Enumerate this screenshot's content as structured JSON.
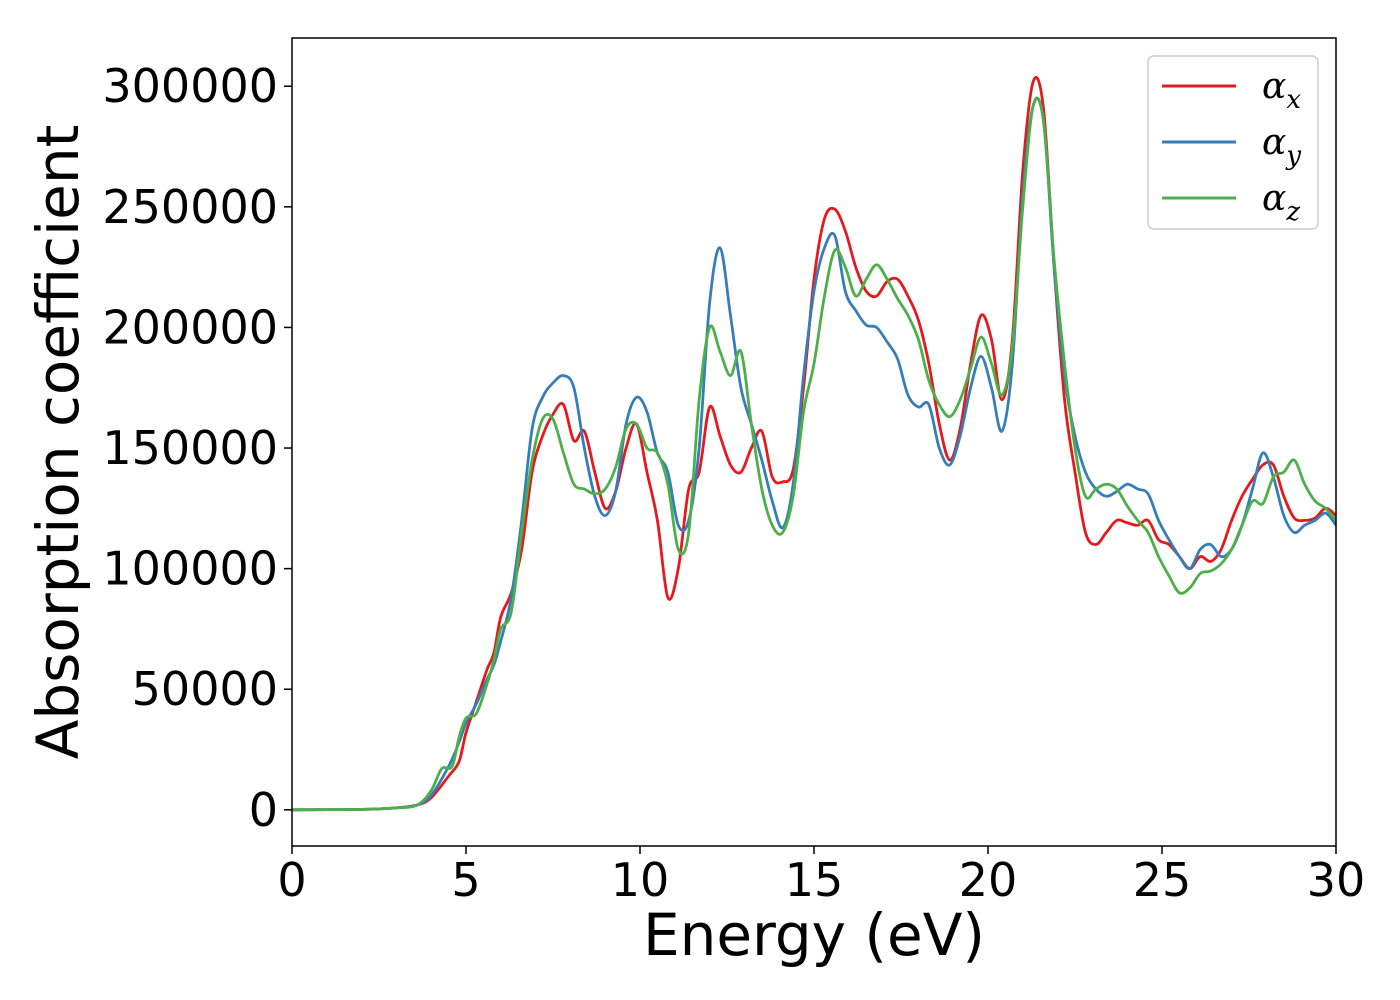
{
  "chart_data": {
    "type": "line",
    "xlabel": "Energy (eV)",
    "ylabel": "Absorption coefficient",
    "xlim": [
      0,
      30
    ],
    "ylim": [
      -15000,
      320000
    ],
    "xticks": [
      0,
      5,
      10,
      15,
      20,
      25,
      30
    ],
    "yticks": [
      0,
      50000,
      100000,
      150000,
      200000,
      250000,
      300000
    ],
    "grid": false,
    "legend_position": "top-right",
    "series": [
      {
        "name": "αx",
        "symbol": "α",
        "subscript": "x",
        "color": "#e41a1c",
        "points": [
          [
            0,
            0
          ],
          [
            2,
            200
          ],
          [
            3,
            800
          ],
          [
            3.6,
            2000
          ],
          [
            4,
            5000
          ],
          [
            4.5,
            14000
          ],
          [
            4.8,
            20000
          ],
          [
            5,
            32000
          ],
          [
            5.3,
            45000
          ],
          [
            5.6,
            58000
          ],
          [
            5.8,
            65000
          ],
          [
            6,
            80000
          ],
          [
            6.3,
            90000
          ],
          [
            6.6,
            108000
          ],
          [
            6.9,
            140000
          ],
          [
            7.2,
            155000
          ],
          [
            7.5,
            164000
          ],
          [
            7.8,
            168000
          ],
          [
            8.1,
            153000
          ],
          [
            8.4,
            157000
          ],
          [
            8.7,
            140000
          ],
          [
            9.0,
            125000
          ],
          [
            9.3,
            132000
          ],
          [
            9.6,
            150000
          ],
          [
            9.9,
            160000
          ],
          [
            10.2,
            140000
          ],
          [
            10.5,
            120000
          ],
          [
            10.8,
            88000
          ],
          [
            11.1,
            100000
          ],
          [
            11.4,
            133000
          ],
          [
            11.7,
            140000
          ],
          [
            12.0,
            167000
          ],
          [
            12.3,
            155000
          ],
          [
            12.6,
            143000
          ],
          [
            12.9,
            140000
          ],
          [
            13.2,
            150000
          ],
          [
            13.5,
            157000
          ],
          [
            13.8,
            138000
          ],
          [
            14.1,
            136000
          ],
          [
            14.4,
            141000
          ],
          [
            14.7,
            175000
          ],
          [
            15.0,
            220000
          ],
          [
            15.3,
            245000
          ],
          [
            15.6,
            249000
          ],
          [
            15.9,
            240000
          ],
          [
            16.2,
            225000
          ],
          [
            16.5,
            215000
          ],
          [
            16.8,
            213000
          ],
          [
            17.1,
            219000
          ],
          [
            17.4,
            220000
          ],
          [
            17.7,
            213000
          ],
          [
            18.0,
            203000
          ],
          [
            18.3,
            185000
          ],
          [
            18.6,
            160000
          ],
          [
            18.9,
            145000
          ],
          [
            19.2,
            158000
          ],
          [
            19.5,
            185000
          ],
          [
            19.8,
            205000
          ],
          [
            20.1,
            195000
          ],
          [
            20.4,
            170000
          ],
          [
            20.7,
            195000
          ],
          [
            21.0,
            265000
          ],
          [
            21.3,
            302000
          ],
          [
            21.6,
            290000
          ],
          [
            21.9,
            225000
          ],
          [
            22.2,
            170000
          ],
          [
            22.5,
            140000
          ],
          [
            22.8,
            115000
          ],
          [
            23.1,
            110000
          ],
          [
            23.4,
            115000
          ],
          [
            23.7,
            120000
          ],
          [
            24.0,
            119000
          ],
          [
            24.3,
            118000
          ],
          [
            24.6,
            120000
          ],
          [
            24.9,
            112000
          ],
          [
            25.2,
            110000
          ],
          [
            25.5,
            105000
          ],
          [
            25.8,
            100000
          ],
          [
            26.1,
            105000
          ],
          [
            26.4,
            103000
          ],
          [
            26.7,
            108000
          ],
          [
            27.0,
            120000
          ],
          [
            27.3,
            130000
          ],
          [
            27.6,
            137000
          ],
          [
            27.9,
            143000
          ],
          [
            28.2,
            143000
          ],
          [
            28.5,
            130000
          ],
          [
            28.8,
            121000
          ],
          [
            29.1,
            120000
          ],
          [
            29.4,
            121000
          ],
          [
            29.7,
            125000
          ],
          [
            30,
            122000
          ]
        ]
      },
      {
        "name": "αy",
        "symbol": "α",
        "subscript": "y",
        "color": "#377eb8",
        "points": [
          [
            0,
            0
          ],
          [
            2,
            200
          ],
          [
            3,
            800
          ],
          [
            3.6,
            2000
          ],
          [
            4,
            6000
          ],
          [
            4.5,
            18000
          ],
          [
            4.8,
            28000
          ],
          [
            5,
            36000
          ],
          [
            5.3,
            44000
          ],
          [
            5.6,
            54000
          ],
          [
            5.8,
            60000
          ],
          [
            6,
            70000
          ],
          [
            6.3,
            88000
          ],
          [
            6.6,
            120000
          ],
          [
            6.9,
            158000
          ],
          [
            7.2,
            171000
          ],
          [
            7.5,
            177000
          ],
          [
            7.8,
            180000
          ],
          [
            8.1,
            175000
          ],
          [
            8.4,
            150000
          ],
          [
            8.7,
            130000
          ],
          [
            9.0,
            122000
          ],
          [
            9.3,
            132000
          ],
          [
            9.6,
            160000
          ],
          [
            9.9,
            171000
          ],
          [
            10.2,
            165000
          ],
          [
            10.5,
            148000
          ],
          [
            10.8,
            140000
          ],
          [
            11.1,
            118000
          ],
          [
            11.4,
            120000
          ],
          [
            11.7,
            150000
          ],
          [
            12.0,
            210000
          ],
          [
            12.3,
            233000
          ],
          [
            12.6,
            205000
          ],
          [
            12.9,
            175000
          ],
          [
            13.2,
            160000
          ],
          [
            13.5,
            145000
          ],
          [
            13.8,
            128000
          ],
          [
            14.1,
            117000
          ],
          [
            14.4,
            135000
          ],
          [
            14.7,
            180000
          ],
          [
            15.0,
            215000
          ],
          [
            15.3,
            233000
          ],
          [
            15.6,
            238000
          ],
          [
            15.9,
            215000
          ],
          [
            16.2,
            207000
          ],
          [
            16.5,
            201000
          ],
          [
            16.8,
            200000
          ],
          [
            17.1,
            194000
          ],
          [
            17.4,
            187000
          ],
          [
            17.7,
            172000
          ],
          [
            18.0,
            167000
          ],
          [
            18.3,
            168000
          ],
          [
            18.6,
            150000
          ],
          [
            18.9,
            143000
          ],
          [
            19.2,
            155000
          ],
          [
            19.5,
            175000
          ],
          [
            19.8,
            188000
          ],
          [
            20.1,
            175000
          ],
          [
            20.4,
            157000
          ],
          [
            20.7,
            185000
          ],
          [
            21.0,
            255000
          ],
          [
            21.3,
            292000
          ],
          [
            21.6,
            285000
          ],
          [
            21.9,
            225000
          ],
          [
            22.2,
            180000
          ],
          [
            22.5,
            155000
          ],
          [
            22.8,
            140000
          ],
          [
            23.1,
            133000
          ],
          [
            23.4,
            130000
          ],
          [
            23.7,
            132000
          ],
          [
            24.0,
            135000
          ],
          [
            24.3,
            133000
          ],
          [
            24.6,
            131000
          ],
          [
            24.9,
            120000
          ],
          [
            25.2,
            112000
          ],
          [
            25.5,
            105000
          ],
          [
            25.8,
            100000
          ],
          [
            26.1,
            108000
          ],
          [
            26.4,
            110000
          ],
          [
            26.7,
            105000
          ],
          [
            27.0,
            108000
          ],
          [
            27.3,
            118000
          ],
          [
            27.6,
            133000
          ],
          [
            27.9,
            148000
          ],
          [
            28.2,
            138000
          ],
          [
            28.5,
            122000
          ],
          [
            28.8,
            115000
          ],
          [
            29.1,
            118000
          ],
          [
            29.4,
            120000
          ],
          [
            29.7,
            123000
          ],
          [
            30,
            118000
          ]
        ]
      },
      {
        "name": "αz",
        "symbol": "α",
        "subscript": "z",
        "color": "#4daf4a",
        "points": [
          [
            0,
            0
          ],
          [
            2,
            200
          ],
          [
            3,
            800
          ],
          [
            3.6,
            2000
          ],
          [
            4,
            8000
          ],
          [
            4.3,
            17000
          ],
          [
            4.6,
            18000
          ],
          [
            4.8,
            30000
          ],
          [
            5,
            38000
          ],
          [
            5.3,
            40000
          ],
          [
            5.6,
            52000
          ],
          [
            5.8,
            62000
          ],
          [
            6,
            75000
          ],
          [
            6.3,
            82000
          ],
          [
            6.6,
            115000
          ],
          [
            6.9,
            145000
          ],
          [
            7.2,
            162000
          ],
          [
            7.5,
            162000
          ],
          [
            7.8,
            148000
          ],
          [
            8.1,
            135000
          ],
          [
            8.4,
            133000
          ],
          [
            8.7,
            131000
          ],
          [
            9.0,
            133000
          ],
          [
            9.3,
            142000
          ],
          [
            9.6,
            158000
          ],
          [
            9.9,
            160000
          ],
          [
            10.2,
            150000
          ],
          [
            10.5,
            148000
          ],
          [
            10.8,
            135000
          ],
          [
            11.1,
            108000
          ],
          [
            11.4,
            115000
          ],
          [
            11.7,
            170000
          ],
          [
            12.0,
            200000
          ],
          [
            12.3,
            190000
          ],
          [
            12.6,
            180000
          ],
          [
            12.9,
            190000
          ],
          [
            13.2,
            160000
          ],
          [
            13.5,
            133000
          ],
          [
            13.8,
            118000
          ],
          [
            14.1,
            115000
          ],
          [
            14.4,
            130000
          ],
          [
            14.7,
            165000
          ],
          [
            15.0,
            185000
          ],
          [
            15.3,
            213000
          ],
          [
            15.6,
            232000
          ],
          [
            15.9,
            225000
          ],
          [
            16.2,
            213000
          ],
          [
            16.5,
            220000
          ],
          [
            16.8,
            226000
          ],
          [
            17.1,
            220000
          ],
          [
            17.4,
            212000
          ],
          [
            17.7,
            205000
          ],
          [
            18.0,
            195000
          ],
          [
            18.3,
            178000
          ],
          [
            18.6,
            168000
          ],
          [
            18.9,
            163000
          ],
          [
            19.2,
            170000
          ],
          [
            19.5,
            183000
          ],
          [
            19.8,
            196000
          ],
          [
            20.1,
            185000
          ],
          [
            20.4,
            172000
          ],
          [
            20.7,
            192000
          ],
          [
            21.0,
            250000
          ],
          [
            21.3,
            292000
          ],
          [
            21.6,
            285000
          ],
          [
            21.9,
            228000
          ],
          [
            22.2,
            185000
          ],
          [
            22.5,
            150000
          ],
          [
            22.8,
            130000
          ],
          [
            23.1,
            133000
          ],
          [
            23.4,
            135000
          ],
          [
            23.7,
            133000
          ],
          [
            24.0,
            126000
          ],
          [
            24.3,
            120000
          ],
          [
            24.6,
            115000
          ],
          [
            24.9,
            105000
          ],
          [
            25.2,
            97000
          ],
          [
            25.5,
            90000
          ],
          [
            25.8,
            92000
          ],
          [
            26.1,
            98000
          ],
          [
            26.4,
            99000
          ],
          [
            26.7,
            102000
          ],
          [
            27.0,
            108000
          ],
          [
            27.3,
            118000
          ],
          [
            27.6,
            128000
          ],
          [
            27.9,
            127000
          ],
          [
            28.2,
            138000
          ],
          [
            28.5,
            140000
          ],
          [
            28.8,
            145000
          ],
          [
            29.1,
            135000
          ],
          [
            29.4,
            128000
          ],
          [
            29.7,
            125000
          ],
          [
            30,
            120000
          ]
        ]
      }
    ]
  }
}
